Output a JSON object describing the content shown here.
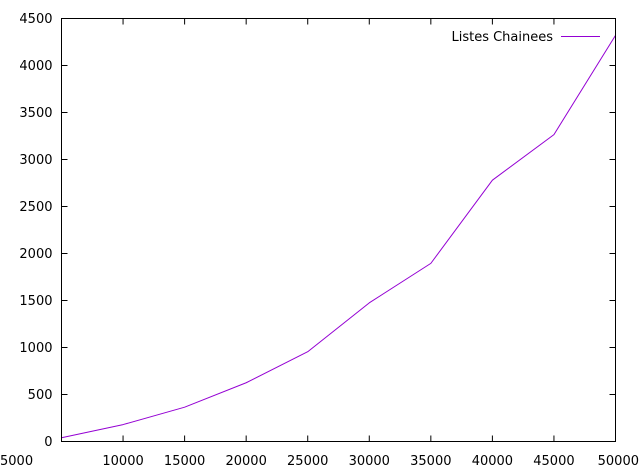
{
  "chart_data": {
    "type": "line",
    "title": "",
    "xlabel": "",
    "ylabel": "",
    "xlim": [
      5000,
      50000
    ],
    "ylim": [
      0,
      4500
    ],
    "xticks": [
      5000,
      10000,
      15000,
      20000,
      25000,
      30000,
      35000,
      40000,
      45000,
      50000
    ],
    "yticks": [
      0,
      500,
      1000,
      1500,
      2000,
      2500,
      3000,
      3500,
      4000,
      4500
    ],
    "grid": false,
    "legend_position": "top-right",
    "series": [
      {
        "name": "Listes Chainees",
        "color": "#9400d3",
        "x": [
          5000,
          10000,
          15000,
          20000,
          25000,
          30000,
          35000,
          40000,
          45000,
          50000
        ],
        "y": [
          40,
          180,
          365,
          625,
          955,
          1475,
          1895,
          2780,
          3265,
          4320
        ]
      }
    ]
  }
}
